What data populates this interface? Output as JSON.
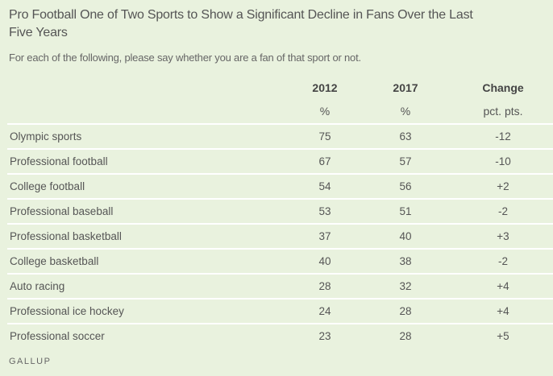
{
  "title": "Pro Football One of Two Sports to Show a Significant Decline in Fans Over the Last Five Years",
  "subtitle": "For each of the following, please say whether you are a fan of that sport or not.",
  "footer": "GALLUP",
  "chart_data": {
    "type": "table",
    "columns": [
      "2012",
      "2017",
      "Change"
    ],
    "units": [
      "%",
      "%",
      "pct. pts."
    ],
    "rows": [
      {
        "label": "Olympic sports",
        "values": [
          "75",
          "63",
          "-12"
        ]
      },
      {
        "label": "Professional football",
        "values": [
          "67",
          "57",
          "-10"
        ]
      },
      {
        "label": "College football",
        "values": [
          "54",
          "56",
          "+2"
        ]
      },
      {
        "label": "Professional baseball",
        "values": [
          "53",
          "51",
          "-2"
        ]
      },
      {
        "label": "Professional basketball",
        "values": [
          "37",
          "40",
          "+3"
        ]
      },
      {
        "label": "College basketball",
        "values": [
          "40",
          "38",
          "-2"
        ]
      },
      {
        "label": "Auto racing",
        "values": [
          "28",
          "32",
          "+4"
        ]
      },
      {
        "label": "Professional ice hockey",
        "values": [
          "24",
          "28",
          "+4"
        ]
      },
      {
        "label": "Professional soccer",
        "values": [
          "23",
          "28",
          "+5"
        ]
      }
    ]
  }
}
